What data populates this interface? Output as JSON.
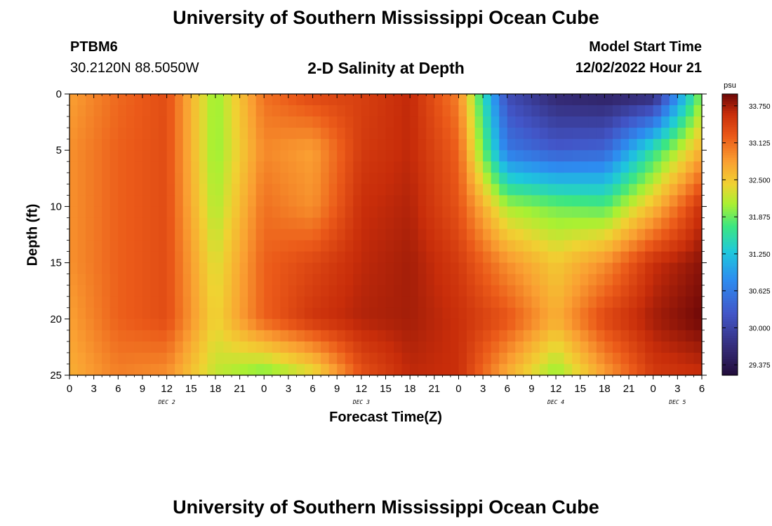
{
  "page": {
    "title": "University of Southern Mississippi Ocean Cube",
    "footer_title": "University of Southern Mississippi Ocean Cube",
    "station_id": "PTBM6",
    "station_coords": "30.2120N  88.5050W",
    "model_start_label": "Model Start Time",
    "model_start_value": "12/02/2022 Hour 21"
  },
  "chart_data": {
    "type": "heatmap",
    "title": "2-D Salinity at Depth",
    "xlabel": "Forecast Time(Z)",
    "ylabel": "Depth (ft)",
    "xlim": [
      0,
      78
    ],
    "ylim": [
      0,
      25
    ],
    "y_inverted": true,
    "x_tick_values": [
      0,
      3,
      6,
      9,
      12,
      15,
      18,
      21,
      24,
      27,
      30,
      33,
      36,
      39,
      42,
      45,
      48,
      51,
      54,
      57,
      60,
      63,
      66,
      69,
      72,
      75,
      78
    ],
    "x_tick_labels": [
      "0",
      "3",
      "6",
      "9",
      "12",
      "15",
      "18",
      "21",
      "0",
      "3",
      "6",
      "9",
      "12",
      "15",
      "18",
      "21",
      "0",
      "3",
      "6",
      "9",
      "12",
      "15",
      "18",
      "21",
      "0",
      "3",
      "6"
    ],
    "y_tick_values": [
      0,
      5,
      10,
      15,
      20,
      25
    ],
    "y_tick_labels": [
      "0",
      "5",
      "10",
      "15",
      "20",
      "25"
    ],
    "day_labels": [
      {
        "hour": 12,
        "text": "DEC 2"
      },
      {
        "hour": 36,
        "text": "DEC 3"
      },
      {
        "hour": 60,
        "text": "DEC 4"
      },
      {
        "hour": 75,
        "text": "DEC 5"
      }
    ],
    "colorbar": {
      "unit": "psu",
      "min": 29.2,
      "max": 33.95,
      "tick_values": [
        33.75,
        33.125,
        32.5,
        31.875,
        31.25,
        30.625,
        30.0,
        29.375
      ],
      "tick_labels": [
        "33.750",
        "33.125",
        "32.500",
        "31.875",
        "31.250",
        "30.625",
        "30.000",
        "29.375"
      ]
    },
    "grid": {
      "hours": [
        0,
        6,
        12,
        18,
        24,
        30,
        36,
        42,
        48,
        54,
        60,
        66,
        72,
        78
      ],
      "depths": [
        0,
        5,
        10,
        15,
        20,
        25
      ],
      "salinity_psu": [
        [
          32.8,
          33.15,
          33.35,
          32.0,
          33.1,
          33.4,
          33.45,
          33.65,
          33.0,
          30.1,
          29.6,
          29.5,
          29.6,
          32.0
        ],
        [
          32.9,
          33.2,
          33.35,
          32.0,
          32.95,
          32.8,
          33.5,
          33.65,
          33.2,
          30.6,
          30.3,
          30.4,
          31.6,
          32.7
        ],
        [
          32.9,
          33.2,
          33.35,
          32.1,
          33.1,
          32.9,
          33.6,
          33.7,
          33.3,
          32.1,
          31.9,
          31.8,
          32.6,
          33.6
        ],
        [
          32.9,
          33.2,
          33.35,
          32.3,
          33.2,
          33.4,
          33.65,
          33.75,
          33.5,
          32.9,
          32.5,
          32.9,
          33.6,
          33.85
        ],
        [
          32.8,
          33.2,
          33.35,
          32.4,
          33.2,
          33.55,
          33.7,
          33.75,
          33.6,
          33.3,
          32.7,
          33.4,
          33.75,
          33.95
        ],
        [
          32.7,
          33.0,
          32.9,
          32.2,
          31.9,
          32.3,
          33.3,
          33.65,
          33.6,
          32.7,
          32.0,
          32.8,
          33.5,
          33.6
        ]
      ]
    }
  }
}
